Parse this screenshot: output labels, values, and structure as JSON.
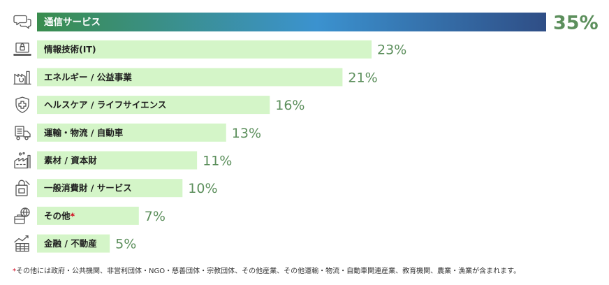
{
  "chart_data": {
    "type": "bar",
    "orientation": "horizontal",
    "categories": [
      "通信サービス",
      "情報技術(IT)",
      "エネルギー / 公益事業",
      "ヘルスケア / ライフサイエンス",
      "運輸・物流 / 自動車",
      "素材 / 資本財",
      "一般消費財 / サービス",
      "その他",
      "金融 / 不動産"
    ],
    "values": [
      35,
      23,
      21,
      16,
      13,
      11,
      10,
      7,
      5
    ],
    "value_labels": [
      "35%",
      "23%",
      "21%",
      "16%",
      "13%",
      "11%",
      "10%",
      "7%",
      "5%"
    ],
    "footnote_marker_category": "その他",
    "highlight_index": 0,
    "xlim": [
      0,
      35
    ],
    "grid": false,
    "legend": "none",
    "icons": [
      "chat-bubbles-icon",
      "laptop-lock-icon",
      "power-plant-icon",
      "medical-shield-icon",
      "truck-icon",
      "factory-icon",
      "shopping-bag-icon",
      "globe-briefcase-icon",
      "finance-chart-icon"
    ],
    "colors": {
      "bar": "#d4f5c8",
      "highlight_gradient": [
        "#3a8d4e",
        "#3b92cf",
        "#2f4e86"
      ],
      "value_text": "#5c8f5c",
      "footnote_star": "#d0021b"
    }
  },
  "footnote": {
    "marker": "*",
    "text": "その他には政府・公共機関、非営利団体・NGO・慈善団体・宗教団体、その他産業、その他運輸・物流・自動車関連産業、教育機関、農業・漁業が含まれます。"
  }
}
